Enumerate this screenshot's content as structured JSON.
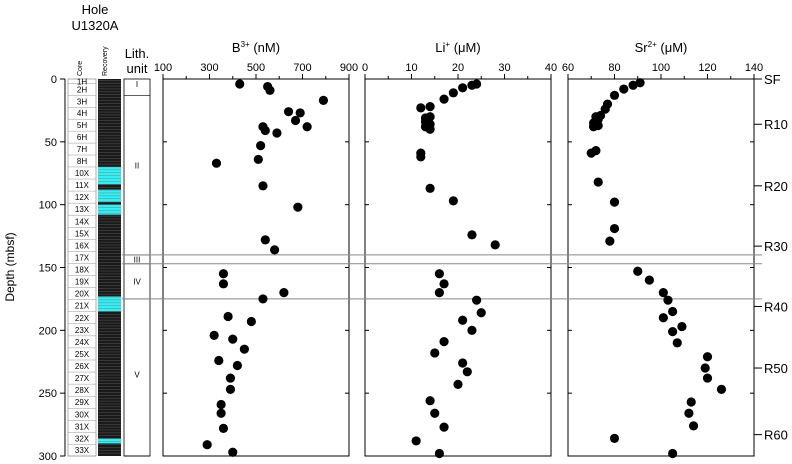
{
  "chart_data": {
    "type": "scatter",
    "hole": {
      "line1": "Hole",
      "line2": "U1320A"
    },
    "column_headers": {
      "core": "Core",
      "recovery": "Recovery",
      "lith_line1": "Lith.",
      "lith_line2": "unit"
    },
    "ylabel": "Depth (mbsf)",
    "ylim": [
      0,
      300
    ],
    "yticks": [
      "0",
      "50",
      "100",
      "150",
      "200",
      "250",
      "300"
    ],
    "cores": [
      {
        "label": "1H",
        "top": 0,
        "bottom": 3.6
      },
      {
        "label": "2H",
        "top": 3.6,
        "bottom": 13
      },
      {
        "label": "3H",
        "top": 13,
        "bottom": 22.5
      },
      {
        "label": "4H",
        "top": 22.5,
        "bottom": 32
      },
      {
        "label": "5H",
        "top": 32,
        "bottom": 41.5
      },
      {
        "label": "6H",
        "top": 41.5,
        "bottom": 51
      },
      {
        "label": "7H",
        "top": 51,
        "bottom": 60.5
      },
      {
        "label": "8H",
        "top": 60.5,
        "bottom": 70
      },
      {
        "label": "10X",
        "top": 70,
        "bottom": 79.6
      },
      {
        "label": "11X",
        "top": 79.6,
        "bottom": 89.2
      },
      {
        "label": "12X",
        "top": 89.2,
        "bottom": 98.8
      },
      {
        "label": "13X",
        "top": 98.8,
        "bottom": 108.4
      },
      {
        "label": "14X",
        "top": 108.4,
        "bottom": 118
      },
      {
        "label": "15X",
        "top": 118,
        "bottom": 127.6
      },
      {
        "label": "16X",
        "top": 127.6,
        "bottom": 137.2
      },
      {
        "label": "17X",
        "top": 137.2,
        "bottom": 146.8
      },
      {
        "label": "18X",
        "top": 146.8,
        "bottom": 156.4
      },
      {
        "label": "19X",
        "top": 156.4,
        "bottom": 166
      },
      {
        "label": "20X",
        "top": 166,
        "bottom": 175.6
      },
      {
        "label": "21X",
        "top": 175.6,
        "bottom": 185.2
      },
      {
        "label": "22X",
        "top": 185.2,
        "bottom": 194.8
      },
      {
        "label": "23X",
        "top": 194.8,
        "bottom": 204.4
      },
      {
        "label": "24X",
        "top": 204.4,
        "bottom": 214
      },
      {
        "label": "25X",
        "top": 214,
        "bottom": 223.6
      },
      {
        "label": "26X",
        "top": 223.6,
        "bottom": 233.2
      },
      {
        "label": "27X",
        "top": 233.2,
        "bottom": 242.8
      },
      {
        "label": "28X",
        "top": 242.8,
        "bottom": 252.4
      },
      {
        "label": "29X",
        "top": 252.4,
        "bottom": 262
      },
      {
        "label": "30X",
        "top": 262,
        "bottom": 271.6
      },
      {
        "label": "31X",
        "top": 271.6,
        "bottom": 281.2
      },
      {
        "label": "32X",
        "top": 281.2,
        "bottom": 290.8
      },
      {
        "label": "33X",
        "top": 290.8,
        "bottom": 300
      }
    ],
    "recovery_cyan_intervals": [
      [
        70,
        84
      ],
      [
        88,
        98
      ],
      [
        100,
        108
      ],
      [
        173,
        185
      ],
      [
        286,
        290
      ]
    ],
    "recovery_color_dark": "#1a1a1a",
    "recovery_color_cyan": "#33f0f5",
    "lith_units": [
      {
        "label": "I",
        "top": 0,
        "bottom": 13,
        "label_depth": 4
      },
      {
        "label": "II",
        "top": 13,
        "bottom": 140,
        "label_depth": 69
      },
      {
        "label": "III",
        "top": 140,
        "bottom": 147,
        "label_depth": 143.5
      },
      {
        "label": "IV",
        "top": 147,
        "bottom": 175,
        "label_depth": 161
      },
      {
        "label": "V",
        "top": 175,
        "bottom": 300,
        "label_depth": 235
      }
    ],
    "boundary_depths": [
      140,
      147,
      175
    ],
    "panels": [
      {
        "name": "boron",
        "title_main": "B",
        "title_sup": "3+",
        "title_unit": " (nM)",
        "xlim": [
          100,
          900
        ],
        "xticks": [
          "100",
          "300",
          "500",
          "700",
          "900"
        ],
        "points": [
          [
            430,
            4
          ],
          [
            550,
            6
          ],
          [
            560,
            9
          ],
          [
            790,
            17
          ],
          [
            640,
            26
          ],
          [
            690,
            27
          ],
          [
            670,
            33
          ],
          [
            720,
            38
          ],
          [
            530,
            38
          ],
          [
            540,
            41
          ],
          [
            590,
            43
          ],
          [
            520,
            53
          ],
          [
            330,
            67
          ],
          [
            510,
            64
          ],
          [
            530,
            85
          ],
          [
            680,
            102
          ],
          [
            540,
            128
          ],
          [
            580,
            136
          ],
          [
            360,
            155
          ],
          [
            360,
            163
          ],
          [
            620,
            170
          ],
          [
            530,
            175
          ],
          [
            380,
            189
          ],
          [
            480,
            193
          ],
          [
            320,
            204
          ],
          [
            400,
            207
          ],
          [
            450,
            215
          ],
          [
            340,
            224
          ],
          [
            420,
            228
          ],
          [
            390,
            238
          ],
          [
            390,
            247
          ],
          [
            350,
            259
          ],
          [
            350,
            266
          ],
          [
            360,
            278
          ],
          [
            290,
            291
          ],
          [
            400,
            297
          ]
        ]
      },
      {
        "name": "lithium",
        "title_main": "Li",
        "title_sup": "+",
        "title_unit": " (μM)",
        "xlim": [
          0,
          40
        ],
        "xticks": [
          "0",
          "10",
          "20",
          "30",
          "40"
        ],
        "points": [
          [
            24,
            4
          ],
          [
            23,
            5
          ],
          [
            21,
            7
          ],
          [
            19,
            11
          ],
          [
            17,
            16
          ],
          [
            14,
            22
          ],
          [
            12,
            23
          ],
          [
            13,
            31
          ],
          [
            14,
            30
          ],
          [
            13,
            34
          ],
          [
            14,
            36
          ],
          [
            13,
            38
          ],
          [
            14,
            40
          ],
          [
            12,
            59
          ],
          [
            12,
            62
          ],
          [
            14,
            87
          ],
          [
            19,
            97
          ],
          [
            23,
            124
          ],
          [
            28,
            132
          ],
          [
            16,
            155
          ],
          [
            17,
            163
          ],
          [
            16,
            170
          ],
          [
            24,
            176
          ],
          [
            25,
            186
          ],
          [
            21,
            192
          ],
          [
            23,
            200
          ],
          [
            17,
            209
          ],
          [
            15,
            218
          ],
          [
            21,
            226
          ],
          [
            22,
            233
          ],
          [
            20,
            243
          ],
          [
            14,
            256
          ],
          [
            15,
            266
          ],
          [
            17,
            277
          ],
          [
            11,
            288
          ],
          [
            16,
            298
          ]
        ]
      },
      {
        "name": "strontium",
        "title_main": "Sr",
        "title_sup": "2+",
        "title_unit": " (μM)",
        "xlim": [
          60,
          140
        ],
        "xticks": [
          "60",
          "80",
          "100",
          "120",
          "140"
        ],
        "points": [
          [
            91,
            3
          ],
          [
            88,
            5
          ],
          [
            84,
            8
          ],
          [
            80,
            13
          ],
          [
            77,
            20
          ],
          [
            76,
            24
          ],
          [
            74,
            29
          ],
          [
            72,
            30
          ],
          [
            73,
            32
          ],
          [
            71,
            35
          ],
          [
            73,
            37
          ],
          [
            71,
            38
          ],
          [
            72,
            57
          ],
          [
            70,
            59
          ],
          [
            73,
            82
          ],
          [
            80,
            98
          ],
          [
            80,
            119
          ],
          [
            78,
            129
          ],
          [
            90,
            153
          ],
          [
            95,
            160
          ],
          [
            101,
            170
          ],
          [
            103,
            176
          ],
          [
            105,
            185
          ],
          [
            101,
            190
          ],
          [
            109,
            197
          ],
          [
            105,
            201
          ],
          [
            107,
            210
          ],
          [
            120,
            221
          ],
          [
            119,
            230
          ],
          [
            120,
            238
          ],
          [
            126,
            247
          ],
          [
            113,
            257
          ],
          [
            112,
            266
          ],
          [
            114,
            276
          ],
          [
            80,
            286
          ],
          [
            105,
            298
          ]
        ]
      }
    ],
    "right_labels": [
      {
        "label": "SF",
        "depth": 0
      },
      {
        "label": "R10",
        "depth": 36
      },
      {
        "label": "R20",
        "depth": 85
      },
      {
        "label": "R30",
        "depth": 133
      },
      {
        "label": "R40",
        "depth": 181
      },
      {
        "label": "R50",
        "depth": 230
      },
      {
        "label": "R60",
        "depth": 283
      }
    ]
  }
}
